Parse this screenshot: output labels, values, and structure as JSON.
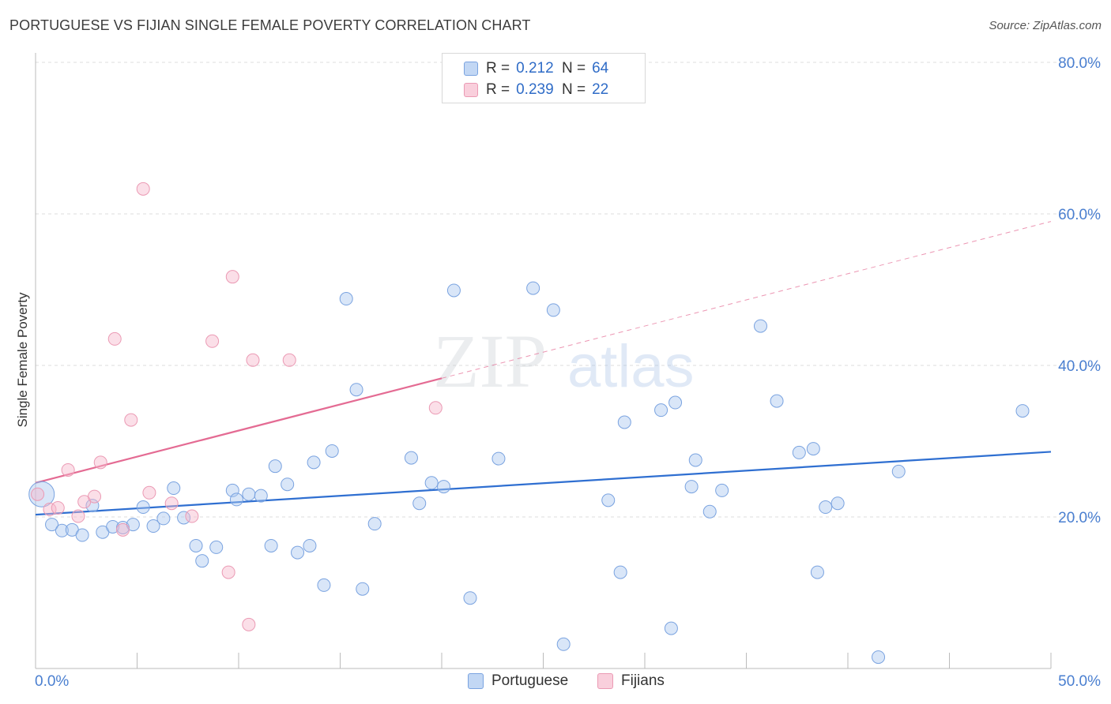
{
  "header": {
    "title": "PORTUGUESE VS FIJIAN SINGLE FEMALE POVERTY CORRELATION CHART",
    "source": "Source: ZipAtlas.com"
  },
  "watermark": {
    "zip": "ZIP",
    "atlas": "atlas"
  },
  "legend": {
    "rows": [
      {
        "r_label": "R =",
        "r_value": "0.212",
        "n_label": "N =",
        "n_value": "64",
        "color": "#a9c8f0"
      },
      {
        "r_label": "R =",
        "r_value": "0.239",
        "n_label": "N =",
        "n_value": "22",
        "color": "#f6b8cc"
      }
    ]
  },
  "bottom_legend": {
    "items": [
      {
        "label": "Portuguese",
        "color": "#a9c8f0"
      },
      {
        "label": "Fijians",
        "color": "#f6b8cc"
      }
    ]
  },
  "chart_data": {
    "type": "scatter",
    "title": "PORTUGUESE VS FIJIAN SINGLE FEMALE POVERTY CORRELATION CHART",
    "xlabel": "",
    "ylabel": "Single Female Poverty",
    "xlim": [
      0,
      50
    ],
    "ylim": [
      0,
      80
    ],
    "x_tick_labels": [
      "0.0%",
      "50.0%"
    ],
    "y_tick_labels": [
      "20.0%",
      "40.0%",
      "60.0%",
      "80.0%"
    ],
    "y_ticks": [
      20,
      40,
      60,
      80
    ],
    "grid": true,
    "legend_position": "top-center",
    "colors": {
      "Portuguese": "#2f6fd1",
      "Fijians": "#e46b93"
    },
    "series": [
      {
        "name": "Portuguese",
        "trend": {
          "x": [
            0,
            50
          ],
          "y": [
            20.3,
            28.6
          ],
          "style": "solid"
        },
        "points": [
          [
            0.3,
            23.0
          ],
          [
            0.8,
            19.0
          ],
          [
            1.3,
            18.2
          ],
          [
            1.8,
            18.3
          ],
          [
            2.3,
            17.6
          ],
          [
            2.8,
            21.5
          ],
          [
            3.3,
            18.0
          ],
          [
            3.8,
            18.7
          ],
          [
            4.3,
            18.6
          ],
          [
            4.8,
            19.0
          ],
          [
            5.3,
            21.3
          ],
          [
            5.8,
            18.8
          ],
          [
            6.3,
            19.8
          ],
          [
            6.8,
            23.8
          ],
          [
            7.3,
            19.9
          ],
          [
            7.9,
            16.2
          ],
          [
            8.2,
            14.2
          ],
          [
            8.9,
            16.0
          ],
          [
            9.7,
            23.5
          ],
          [
            9.9,
            22.3
          ],
          [
            10.5,
            23.0
          ],
          [
            11.1,
            22.8
          ],
          [
            11.6,
            16.2
          ],
          [
            11.8,
            26.7
          ],
          [
            12.4,
            24.3
          ],
          [
            12.9,
            15.3
          ],
          [
            13.5,
            16.2
          ],
          [
            13.7,
            27.2
          ],
          [
            14.2,
            11.0
          ],
          [
            14.6,
            28.7
          ],
          [
            15.3,
            48.8
          ],
          [
            15.8,
            36.8
          ],
          [
            16.1,
            10.5
          ],
          [
            16.7,
            19.1
          ],
          [
            18.5,
            27.8
          ],
          [
            18.9,
            21.8
          ],
          [
            19.5,
            24.5
          ],
          [
            20.1,
            24.0
          ],
          [
            20.6,
            49.9
          ],
          [
            21.4,
            9.3
          ],
          [
            22.8,
            27.7
          ],
          [
            24.5,
            50.2
          ],
          [
            25.5,
            47.3
          ],
          [
            26.0,
            3.2
          ],
          [
            28.2,
            22.2
          ],
          [
            28.8,
            12.7
          ],
          [
            29.0,
            32.5
          ],
          [
            30.8,
            34.1
          ],
          [
            31.3,
            5.3
          ],
          [
            31.5,
            35.1
          ],
          [
            32.3,
            24.0
          ],
          [
            32.5,
            27.5
          ],
          [
            33.2,
            20.7
          ],
          [
            33.8,
            23.5
          ],
          [
            35.7,
            45.2
          ],
          [
            36.5,
            35.3
          ],
          [
            37.6,
            28.5
          ],
          [
            38.3,
            29.0
          ],
          [
            38.5,
            12.7
          ],
          [
            38.9,
            21.3
          ],
          [
            39.5,
            21.8
          ],
          [
            41.5,
            1.5
          ],
          [
            42.5,
            26.0
          ],
          [
            48.6,
            34.0
          ]
        ]
      },
      {
        "name": "Fijians",
        "trend": {
          "x": [
            0,
            20
          ],
          "y": [
            24.5,
            38.3
          ],
          "style": "solid",
          "extension": {
            "x": [
              20,
              50
            ],
            "y": [
              38.3,
              59.0
            ],
            "style": "dashed"
          }
        },
        "points": [
          [
            0.1,
            23.0
          ],
          [
            0.7,
            21.0
          ],
          [
            1.1,
            21.2
          ],
          [
            1.6,
            26.2
          ],
          [
            2.1,
            20.1
          ],
          [
            2.4,
            22.0
          ],
          [
            2.9,
            22.7
          ],
          [
            3.2,
            27.2
          ],
          [
            3.9,
            43.5
          ],
          [
            4.3,
            18.3
          ],
          [
            4.7,
            32.8
          ],
          [
            5.3,
            63.3
          ],
          [
            5.6,
            23.2
          ],
          [
            6.7,
            21.8
          ],
          [
            7.7,
            20.1
          ],
          [
            8.7,
            43.2
          ],
          [
            9.5,
            12.7
          ],
          [
            9.7,
            51.7
          ],
          [
            10.5,
            5.8
          ],
          [
            10.7,
            40.7
          ],
          [
            12.5,
            40.7
          ],
          [
            19.7,
            34.4
          ]
        ]
      }
    ]
  }
}
